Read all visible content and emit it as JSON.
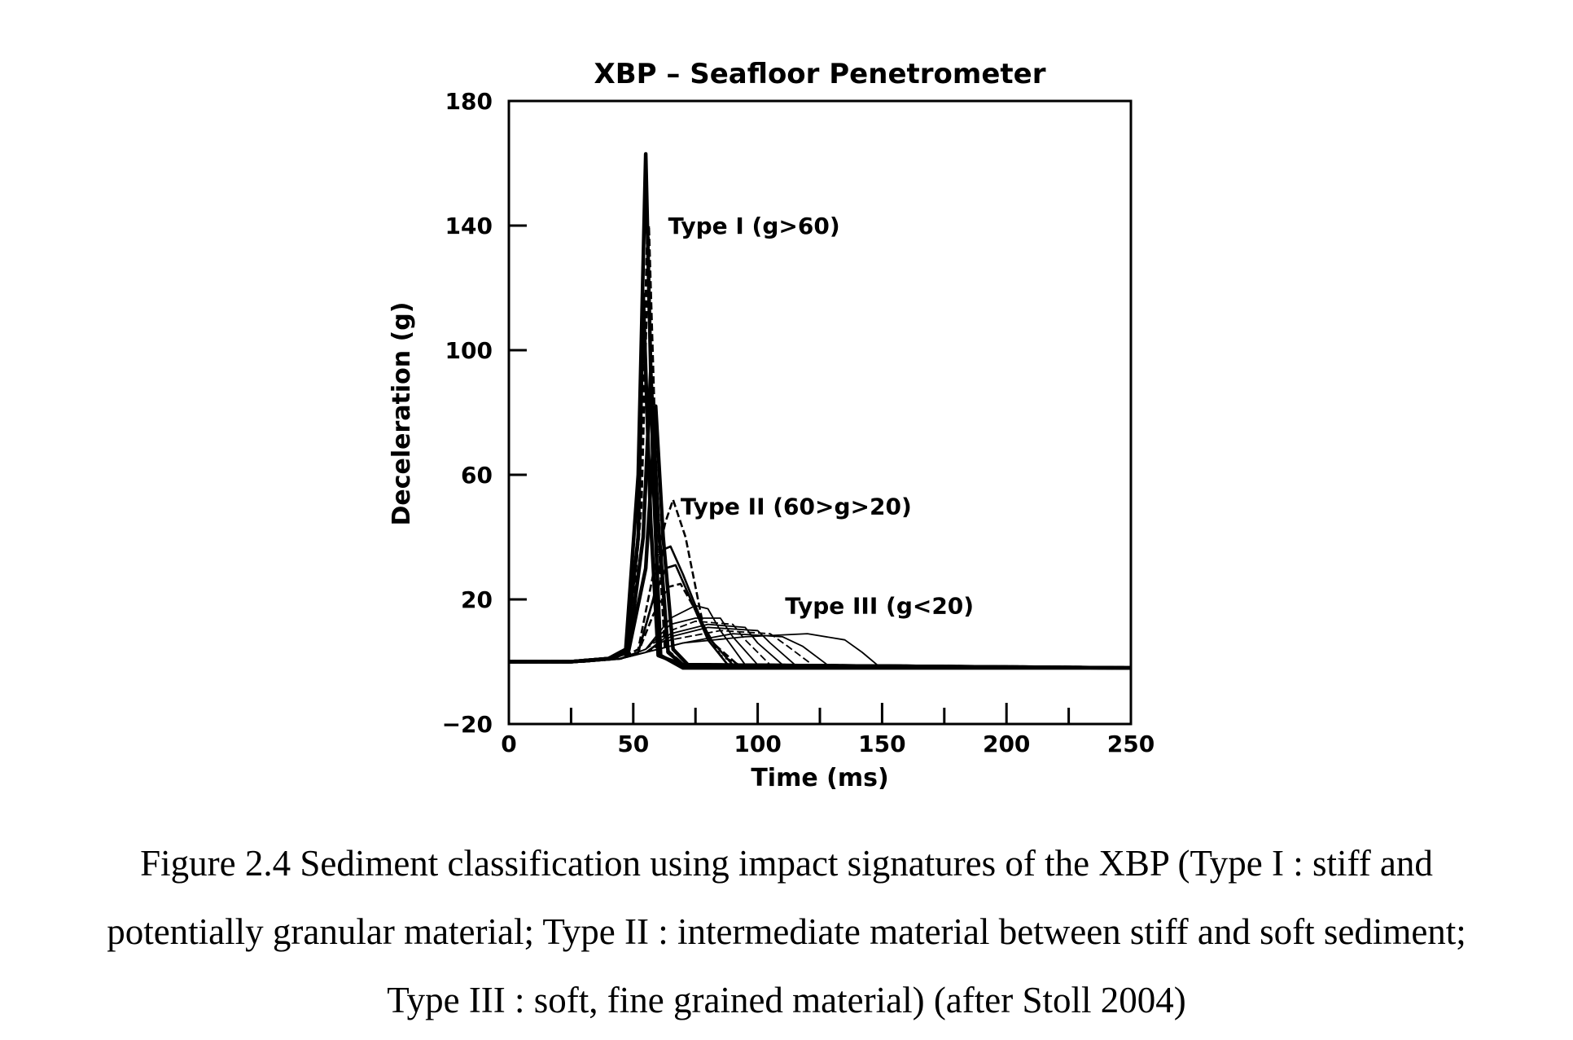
{
  "chart_data": {
    "type": "line",
    "title": "XBP – Seafloor Penetrometer",
    "xlabel": "Time (ms)",
    "ylabel": "Deceleration (g)",
    "xlim": [
      0,
      250
    ],
    "ylim": [
      -20,
      180
    ],
    "x_ticks": [
      "0",
      "50",
      "100",
      "150",
      "200",
      "250"
    ],
    "y_ticks": [
      "-20",
      "20",
      "60",
      "100",
      "140",
      "180"
    ],
    "grid": false,
    "annotations": [
      {
        "text": "Type I (g>60)",
        "x": 64,
        "y": 140
      },
      {
        "text": "Type II (60>g>20)",
        "x": 69,
        "y": 50
      },
      {
        "text": "Type III (g<20)",
        "x": 111,
        "y": 18
      }
    ],
    "series": [
      {
        "group": "Type I",
        "x": [
          0,
          25,
          40,
          47,
          52,
          55,
          58,
          61,
          70,
          250
        ],
        "y": [
          0,
          0,
          1,
          4,
          60,
          163,
          60,
          2,
          -2,
          -2
        ]
      },
      {
        "group": "Type I",
        "x": [
          0,
          25,
          40,
          47,
          52,
          54,
          57,
          60,
          70,
          250
        ],
        "y": [
          0,
          0,
          1,
          3,
          40,
          118,
          45,
          2,
          -1,
          -2
        ]
      },
      {
        "group": "Type I",
        "x": [
          0,
          25,
          40,
          48,
          53,
          56,
          59,
          63,
          70,
          250
        ],
        "y": [
          0,
          0,
          1,
          3,
          50,
          140,
          60,
          4,
          -1,
          -2
        ]
      },
      {
        "group": "Type I",
        "x": [
          0,
          25,
          40,
          48,
          54,
          57,
          60,
          64,
          70,
          250
        ],
        "y": [
          0,
          0,
          1,
          3,
          40,
          93,
          45,
          3,
          -1,
          -2
        ]
      },
      {
        "group": "Type I",
        "x": [
          0,
          25,
          40,
          48,
          55,
          59,
          62,
          66,
          72,
          250
        ],
        "y": [
          0,
          0,
          1,
          3,
          30,
          82,
          40,
          4,
          -1,
          -2
        ]
      },
      {
        "group": "Type II",
        "x": [
          0,
          30,
          45,
          52,
          58,
          63,
          66,
          71,
          78,
          85,
          95,
          250
        ],
        "y": [
          0,
          0,
          1,
          4,
          28,
          45,
          52,
          40,
          12,
          2,
          -2,
          -2
        ]
      },
      {
        "group": "Type II",
        "x": [
          0,
          30,
          45,
          52,
          58,
          62,
          65,
          70,
          80,
          90,
          250
        ],
        "y": [
          0,
          0,
          1,
          3,
          20,
          36,
          37,
          28,
          8,
          -1,
          -2
        ]
      },
      {
        "group": "Type II",
        "x": [
          0,
          30,
          45,
          52,
          58,
          63,
          67,
          72,
          80,
          88,
          250
        ],
        "y": [
          0,
          0,
          1,
          3,
          20,
          30,
          31,
          22,
          7,
          -1,
          -2
        ]
      },
      {
        "group": "Type II",
        "x": [
          0,
          30,
          45,
          52,
          58,
          64,
          69,
          74,
          82,
          92,
          250
        ],
        "y": [
          0,
          0,
          1,
          3,
          15,
          24,
          25,
          18,
          6,
          -1,
          -2
        ]
      },
      {
        "group": "Type III",
        "x": [
          0,
          30,
          45,
          55,
          65,
          75,
          80,
          85,
          95,
          250
        ],
        "y": [
          0,
          0,
          1,
          4,
          14,
          18,
          17,
          10,
          -1,
          -2
        ]
      },
      {
        "group": "Type III",
        "x": [
          0,
          30,
          45,
          55,
          65,
          75,
          85,
          90,
          100,
          250
        ],
        "y": [
          0,
          0,
          1,
          4,
          12,
          14,
          14,
          8,
          -1,
          -2
        ]
      },
      {
        "group": "Type III",
        "x": [
          0,
          30,
          45,
          55,
          65,
          75,
          90,
          95,
          105,
          250
        ],
        "y": [
          0,
          0,
          1,
          4,
          10,
          13,
          12,
          7,
          -1,
          -2
        ]
      },
      {
        "group": "Type III",
        "x": [
          0,
          30,
          45,
          55,
          65,
          80,
          95,
          100,
          110,
          250
        ],
        "y": [
          0,
          0,
          1,
          3,
          9,
          12,
          11,
          6,
          -1,
          -2
        ]
      },
      {
        "group": "Type III",
        "x": [
          0,
          30,
          45,
          55,
          65,
          80,
          100,
          105,
          115,
          250
        ],
        "y": [
          0,
          0,
          1,
          3,
          8,
          11,
          10,
          6,
          -1,
          -2
        ]
      },
      {
        "group": "Type III",
        "x": [
          0,
          30,
          45,
          55,
          65,
          85,
          105,
          112,
          122,
          250
        ],
        "y": [
          0,
          0,
          1,
          3,
          7,
          10,
          9,
          5,
          -1,
          -2
        ]
      },
      {
        "group": "Type III",
        "x": [
          0,
          30,
          45,
          55,
          70,
          90,
          110,
          118,
          128,
          250
        ],
        "y": [
          0,
          0,
          1,
          3,
          6,
          9,
          8,
          5,
          -1,
          -2
        ]
      },
      {
        "group": "Type III",
        "x": [
          0,
          30,
          45,
          55,
          70,
          95,
          120,
          135,
          142,
          148,
          250
        ],
        "y": [
          0,
          0,
          1,
          3,
          6,
          8,
          9,
          7,
          3,
          -1,
          -2
        ]
      }
    ]
  },
  "caption": {
    "lines": [
      "Figure 2.4 Sediment classification using impact signatures of the XBP (Type I : stiff and",
      "potentially granular material; Type II : intermediate material between stiff and soft sediment;",
      "Type III : soft, fine grained material) (after Stoll 2004)"
    ]
  }
}
